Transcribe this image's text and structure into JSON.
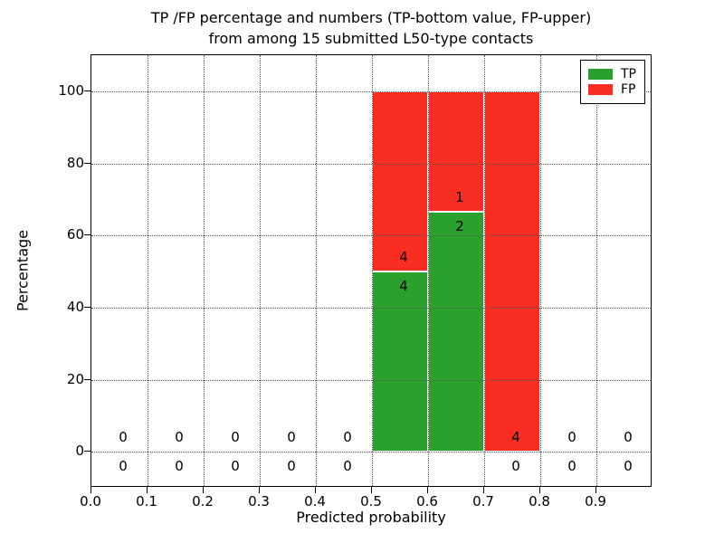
{
  "title": {
    "line1": "TP /FP percentage and numbers (TP-bottom value, FP-upper)",
    "line2": "from among 15 submitted L50-type contacts"
  },
  "axes": {
    "xlabel": "Predicted probability",
    "ylabel": "Percentage",
    "x_tick_values": [
      0.0,
      0.1,
      0.2,
      0.3,
      0.4,
      0.5,
      0.6,
      0.7,
      0.8,
      0.9
    ],
    "x_tick_labels": [
      "0.0",
      "0.1",
      "0.2",
      "0.3",
      "0.4",
      "0.5",
      "0.6",
      "0.7",
      "0.8",
      "0.9"
    ],
    "y_tick_values": [
      0,
      20,
      40,
      60,
      80,
      100
    ],
    "y_tick_labels": [
      "0",
      "20",
      "40",
      "60",
      "80",
      "100"
    ]
  },
  "legend": {
    "items": [
      {
        "label": "TP",
        "color": "#2ca02c"
      },
      {
        "label": "FP",
        "color": "#f92d22"
      }
    ],
    "position": "upper right"
  },
  "chart_data": {
    "type": "bar",
    "stacked": true,
    "title": "TP /FP percentage and numbers (TP-bottom value, FP-upper) from among 15 submitted L50-type contacts",
    "xlabel": "Predicted probability",
    "ylabel": "Percentage",
    "xlim": [
      0.0,
      1.0
    ],
    "ylim": [
      -10,
      110
    ],
    "grid": true,
    "legend_position": "upper right",
    "total_contacts": 15,
    "bin_width": 0.1,
    "bin_left_edges": [
      0.0,
      0.1,
      0.2,
      0.3,
      0.4,
      0.5,
      0.6,
      0.7,
      0.8,
      0.9
    ],
    "series": [
      {
        "name": "TP",
        "color": "#2ca02c",
        "percent": [
          0,
          0,
          0,
          0,
          0,
          50,
          66.67,
          0,
          0,
          0
        ],
        "counts": [
          0,
          0,
          0,
          0,
          0,
          4,
          2,
          0,
          0,
          0
        ]
      },
      {
        "name": "FP",
        "color": "#f92d22",
        "percent": [
          0,
          0,
          0,
          0,
          0,
          50,
          33.33,
          100,
          0,
          0
        ],
        "counts": [
          0,
          0,
          0,
          0,
          0,
          4,
          1,
          4,
          0,
          0
        ]
      }
    ],
    "count_label_offset_units": 4
  }
}
